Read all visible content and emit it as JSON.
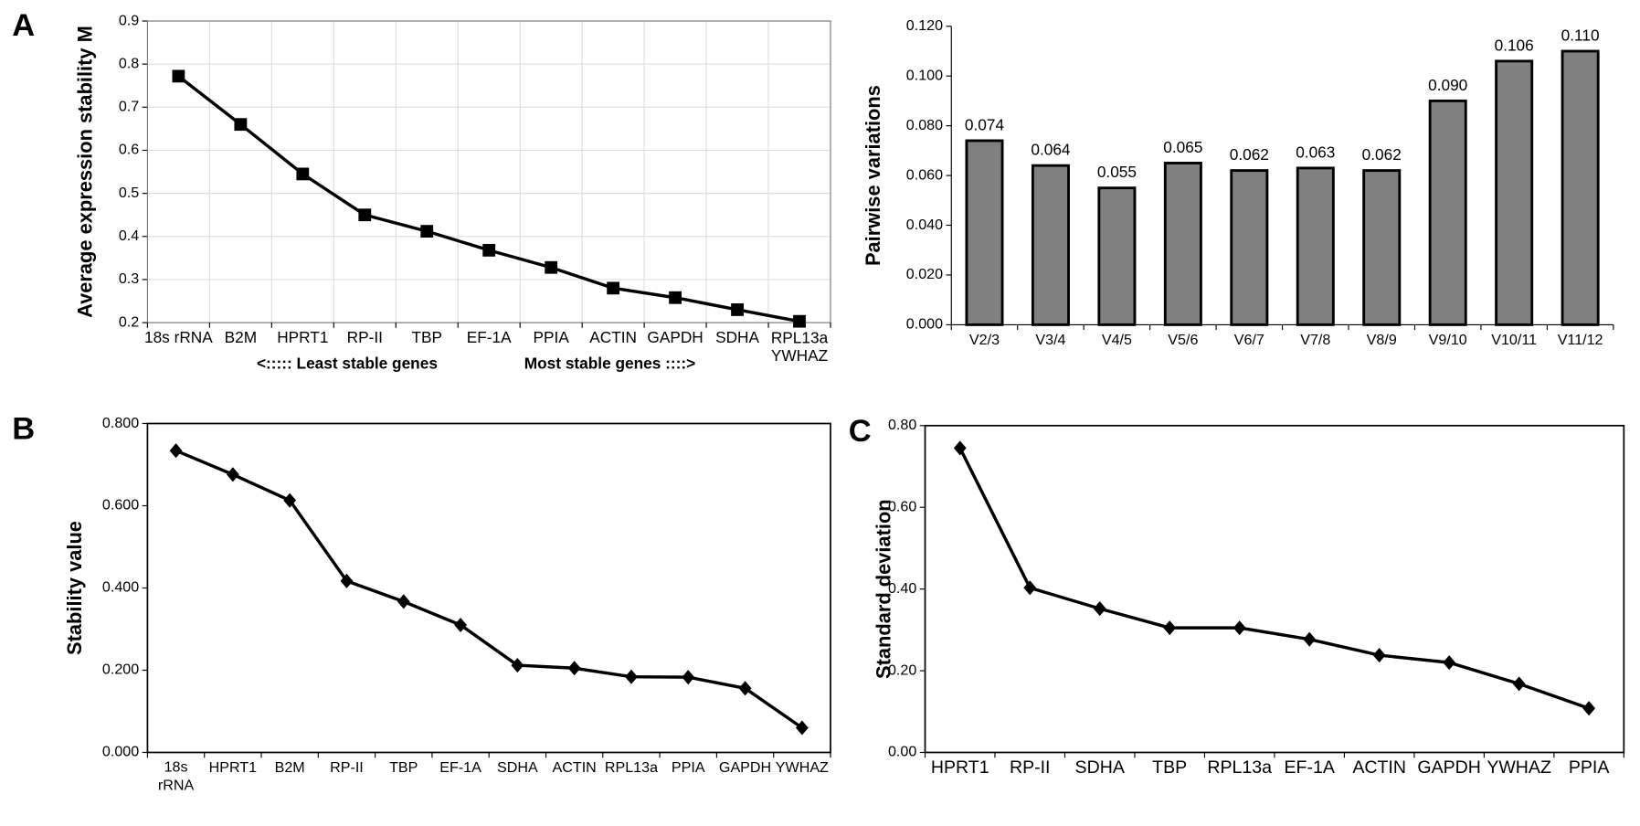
{
  "chart_data": [
    {
      "type": "line",
      "panel": "A",
      "ylabel": "Average expression stability M",
      "categories": [
        "18s rRNA",
        "B2M",
        "HPRT1",
        "RP-II",
        "TBP",
        "EF-1A",
        "PPIA",
        "ACTIN",
        "GAPDH",
        "SDHA",
        "RPL13a\nYWHAZ"
      ],
      "values": [
        0.772,
        0.66,
        0.545,
        0.45,
        0.412,
        0.368,
        0.328,
        0.28,
        0.258,
        0.23,
        0.203
      ],
      "ylim": [
        0.2,
        0.9
      ],
      "yticks": [
        0.2,
        0.3,
        0.4,
        0.5,
        0.6,
        0.7,
        0.8,
        0.9
      ],
      "grid": true,
      "marker": "square",
      "color": "#000000",
      "annotations": [
        "<::::: Least stable genes",
        "Most stable genes ::::>"
      ]
    },
    {
      "type": "bar",
      "ylabel": "Pairwise variations",
      "categories": [
        "V2/3",
        "V3/4",
        "V4/5",
        "V5/6",
        "V6/7",
        "V7/8",
        "V8/9",
        "V9/10",
        "V10/11",
        "V11/12"
      ],
      "values": [
        0.074,
        0.064,
        0.055,
        0.065,
        0.062,
        0.063,
        0.062,
        0.09,
        0.106,
        0.11
      ],
      "value_labels": [
        "0.074",
        "0.064",
        "0.055",
        "0.065",
        "0.062",
        "0.063",
        "0.062",
        "0.090",
        "0.106",
        "0.110"
      ],
      "ylim": [
        0,
        0.12
      ],
      "yticks": [
        {
          "value": 0,
          "label": "0.000"
        },
        {
          "value": 0.02,
          "label": "0.020"
        },
        {
          "value": 0.04,
          "label": "0.040"
        },
        {
          "value": 0.06,
          "label": "0.060"
        },
        {
          "value": 0.08,
          "label": "0.080"
        },
        {
          "value": 0.1,
          "label": "0.100"
        },
        {
          "value": 0.12,
          "label": "0.120"
        }
      ],
      "grid": false,
      "color": "#808080"
    },
    {
      "type": "line",
      "panel": "B",
      "ylabel": "Stability value",
      "categories": [
        "18s\nrRNA",
        "HPRT1",
        "B2M",
        "RP-II",
        "TBP",
        "EF-1A",
        "SDHA",
        "ACTIN",
        "RPL13a",
        "PPIA",
        "GAPDH",
        "YWHAZ"
      ],
      "values": [
        0.734,
        0.676,
        0.613,
        0.417,
        0.367,
        0.31,
        0.212,
        0.205,
        0.184,
        0.183,
        0.156,
        0.06
      ],
      "ylim": [
        0,
        0.8
      ],
      "yticks": [
        {
          "value": 0,
          "label": "0.000"
        },
        {
          "value": 0.2,
          "label": "0.200"
        },
        {
          "value": 0.4,
          "label": "0.400"
        },
        {
          "value": 0.6,
          "label": "0.600"
        },
        {
          "value": 0.8,
          "label": "0.800"
        }
      ],
      "grid": false,
      "marker": "diamond",
      "color": "#000000"
    },
    {
      "type": "line",
      "panel": "C",
      "ylabel": "Standard deviation",
      "categories": [
        "HPRT1",
        "RP-II",
        "SDHA",
        "TBP",
        "RPL13a",
        "EF-1A",
        "ACTIN",
        "GAPDH",
        "YWHAZ",
        "PPIA"
      ],
      "values": [
        0.745,
        0.403,
        0.352,
        0.305,
        0.305,
        0.277,
        0.238,
        0.22,
        0.168,
        0.108
      ],
      "ylim": [
        0,
        0.8
      ],
      "yticks": [
        {
          "value": 0,
          "label": "0.00"
        },
        {
          "value": 0.2,
          "label": "0.20"
        },
        {
          "value": 0.4,
          "label": "0.40"
        },
        {
          "value": 0.6,
          "label": "0.60"
        },
        {
          "value": 0.8,
          "label": "0.80"
        }
      ],
      "grid": false,
      "marker": "diamond",
      "color": "#000000"
    }
  ]
}
